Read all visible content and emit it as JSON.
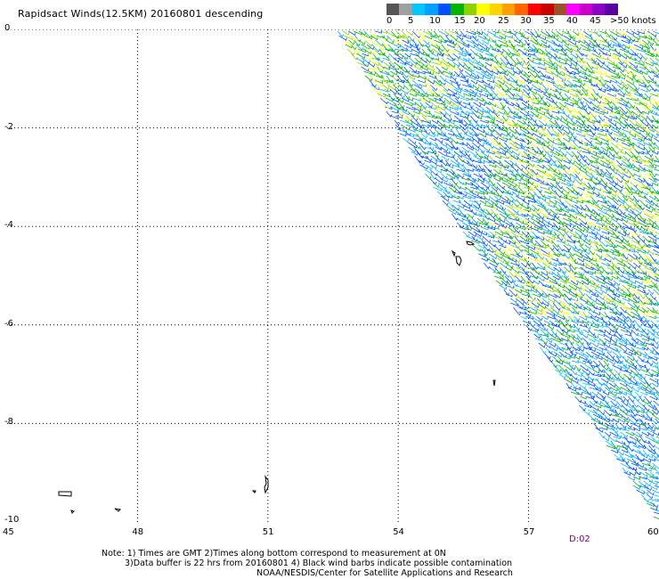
{
  "title": "Rapidsact Winds(12.5KM) 20160801 descending",
  "scale": {
    "labels": [
      "0",
      "5",
      "10",
      "15",
      "20",
      "25",
      "30",
      "35",
      "40",
      "45",
      ">50 knots"
    ],
    "colors": [
      "#555555",
      "#a0a0a0",
      "#00c8ff",
      "#00a0ff",
      "#0050ff",
      "#00b400",
      "#8cd200",
      "#ffff00",
      "#ffd200",
      "#ffa000",
      "#ff6400",
      "#ff0000",
      "#c80000",
      "#a05028",
      "#ff00ff",
      "#c800c8",
      "#8c00c8",
      "#5a00a0"
    ]
  },
  "axes": {
    "lat_labels": [
      "0",
      "-2",
      "-4",
      "-6",
      "-8",
      "-10"
    ],
    "lon_labels": [
      "45",
      "48",
      "51",
      "54",
      "57",
      "60"
    ]
  },
  "time_stamp": "D:02",
  "notes": [
    "Note: 1) Times are GMT 2)Times along bottom correspond to measurement at 0N",
    "3)Data buffer is 22 hrs from 20160801 4) Black wind barbs indicate possible contamination",
    "NOAA/NESDIS/Center for Satellite Applications and Research"
  ]
}
